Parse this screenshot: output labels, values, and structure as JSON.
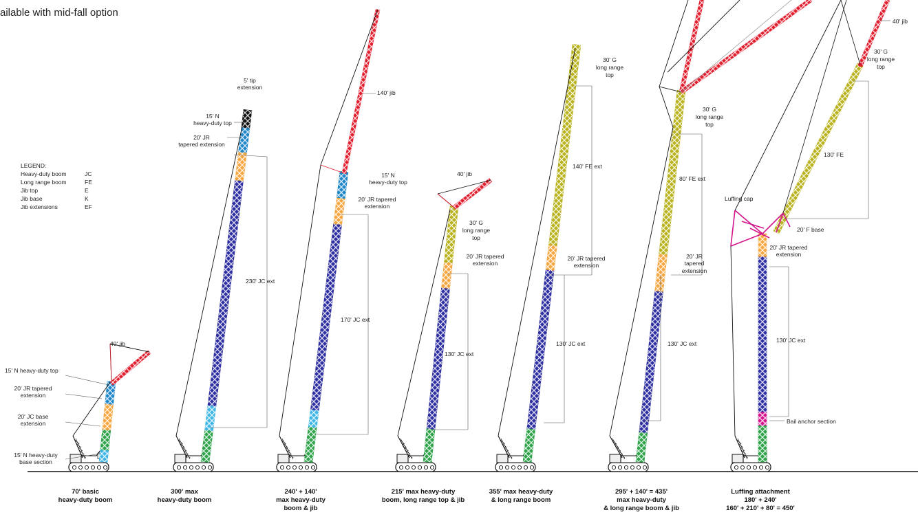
{
  "header": {
    "note": "ailable with mid-fall option"
  },
  "legend": {
    "title": "LEGEND:",
    "rows": [
      {
        "name": "Heavy-duty boom",
        "code": "JC"
      },
      {
        "name": "Long range boom",
        "code": "FE"
      },
      {
        "name": "Jib top",
        "code": "E"
      },
      {
        "name": "Jib base",
        "code": "K"
      },
      {
        "name": "Jib extensions",
        "code": "EF"
      }
    ]
  },
  "colors": {
    "base_section": "#3fb6e6",
    "jc_base": "#2ea34a",
    "jc_ext": "#2e2fa0",
    "tapered": "#f4a640",
    "nose": "#1f86c9",
    "long_range": "#b9b21f",
    "jib": "#e02030",
    "luffing": "#d4148c",
    "crane_body": "#222222"
  },
  "configurations": [
    {
      "id": 1,
      "caption": [
        "70' basic",
        "heavy-duty boom"
      ],
      "labels": [
        "40' jib",
        "15' N heavy-duty top",
        "20' JR tapered",
        "extension",
        "20' JC base",
        "extension",
        "15' N heavy-duty",
        "base section"
      ]
    },
    {
      "id": 2,
      "caption": [
        "300' max",
        "heavy-duty boom"
      ],
      "labels": [
        "5' tip",
        "extension",
        "15' N",
        "heavy-duty top",
        "20' JR",
        "tapered extension",
        "230' JC ext"
      ]
    },
    {
      "id": 3,
      "caption": [
        "240' + 140'",
        "max heavy-duty",
        "boom & jib"
      ],
      "labels": [
        "140' jib",
        "15' N",
        "heavy-duty top",
        "20' JR tapered",
        "extension",
        "170' JC ext"
      ]
    },
    {
      "id": 4,
      "caption": [
        "215' max heavy-duty",
        "boom, long range top & jib"
      ],
      "labels": [
        "40' jib",
        "30' G",
        "long range",
        "top",
        "20' JR tapered",
        "extension",
        "130' JC ext"
      ]
    },
    {
      "id": 5,
      "caption": [
        "355' max heavy-duty",
        "& long range boom"
      ],
      "labels": [
        "30' G",
        "long range",
        "top",
        "140' FE ext",
        "20' JR tapered",
        "extension",
        "130' JC ext"
      ]
    },
    {
      "id": 6,
      "caption": [
        "295' + 140' = 435'",
        "max heavy-duty",
        "& long range boom & jib"
      ],
      "labels": [
        "30' G",
        "long range",
        "top",
        "80' FE ext",
        "20' JR",
        "tapered",
        "extension",
        "130' JC ext"
      ]
    },
    {
      "id": 7,
      "caption": [
        "Luffing attachment",
        "180' + 240'",
        "160' + 210' + 80' = 450'"
      ],
      "labels": [
        "40' jib",
        "30' G",
        "long range",
        "top",
        "130' FE",
        "Luffing cap",
        "20' F base",
        "20' JR tapered",
        "extension",
        "130' JC ext",
        "Bail anchor section"
      ]
    }
  ]
}
